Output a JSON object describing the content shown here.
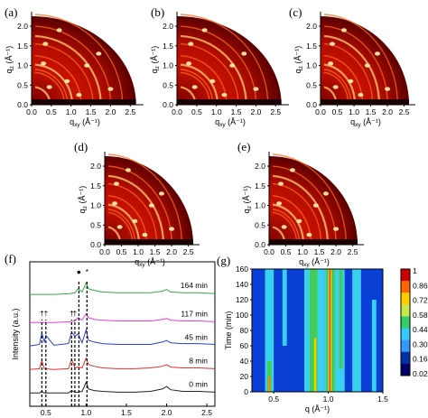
{
  "panels": {
    "gixd": [
      {
        "label": "(a)",
        "x_title": "q",
        "x_sub": "xy",
        "x_unit": " (Å⁻¹)",
        "y_title": "q",
        "y_sub": "z",
        "y_unit": " (Å⁻¹)"
      },
      {
        "label": "(b)",
        "x_title": "q",
        "x_sub": "xy",
        "x_unit": " (Å⁻¹)",
        "y_title": "q",
        "y_sub": "z",
        "y_unit": " (Å⁻¹)"
      },
      {
        "label": "(c)",
        "x_title": "q",
        "x_sub": "xy",
        "x_unit": " (Å⁻¹)",
        "y_title": "q",
        "y_sub": "z",
        "y_unit": " (Å⁻¹)"
      },
      {
        "label": "(d)",
        "x_title": "q",
        "x_sub": "xy",
        "x_unit": " (Å⁻¹)",
        "y_title": "q",
        "y_sub": "z",
        "y_unit": " (Å⁻¹)"
      },
      {
        "label": "(e)",
        "x_title": "q",
        "x_sub": "xy",
        "x_unit": " (Å⁻¹)",
        "y_title": "q",
        "y_sub": "z",
        "y_unit": " (Å⁻¹)"
      }
    ],
    "gixd_x_ticks": [
      "0.0",
      "0.5",
      "1.0",
      "1.5",
      "2.0",
      "2.5"
    ],
    "gixd_y_ticks": [
      "0.0",
      "0.5",
      "1.0",
      "1.5",
      "2.0"
    ],
    "f": {
      "label": "(f)"
    },
    "g": {
      "label": "(g)"
    }
  },
  "chart_data": [
    {
      "type": "heatmap",
      "panels": [
        "(a)",
        "(b)",
        "(c)",
        "(d)",
        "(e)"
      ],
      "xlabel": "qxy (Å-1)",
      "ylabel": "qz (Å-1)",
      "xlim": [
        0,
        2.7
      ],
      "ylim": [
        0,
        2.3
      ],
      "x_ticks": [
        0.0,
        0.5,
        1.0,
        1.5,
        2.0,
        2.5
      ],
      "y_ticks": [
        0.0,
        0.5,
        1.0,
        1.5,
        2.0
      ],
      "ring_q": [
        0.45,
        0.82,
        0.9,
        1.02,
        1.25,
        1.55,
        1.75,
        2.0,
        2.3
      ]
    },
    {
      "type": "line",
      "title": "(f)",
      "xlabel": "q (Å-1)",
      "ylabel": "Intensity (a.u.)",
      "xlim": [
        0.3,
        2.6
      ],
      "x_ticks": [
        0.5,
        1.0,
        1.5,
        2.0,
        2.5
      ],
      "series": [
        {
          "name": "0 min",
          "color": "#222222",
          "offset": 0,
          "x": [
            0.3,
            0.42,
            0.45,
            0.48,
            0.6,
            0.78,
            0.82,
            0.86,
            0.9,
            0.95,
            1.0,
            1.03,
            1.1,
            1.2,
            1.4,
            1.6,
            1.8,
            1.95,
            2.0,
            2.05,
            2.2,
            2.4,
            2.6
          ],
          "y": [
            0.3,
            0.3,
            0.5,
            0.3,
            0.3,
            0.3,
            0.6,
            0.4,
            0.4,
            0.5,
            1.6,
            0.8,
            0.6,
            0.5,
            0.4,
            0.4,
            0.5,
            0.8,
            1.1,
            0.7,
            0.5,
            0.5,
            0.4
          ]
        },
        {
          "name": "8 min",
          "color": "#e03030",
          "offset": 1,
          "x": [
            0.3,
            0.42,
            0.45,
            0.48,
            0.6,
            0.78,
            0.82,
            0.86,
            0.9,
            0.95,
            1.0,
            1.03,
            1.1,
            1.2,
            1.4,
            1.6,
            1.8,
            1.95,
            2.0,
            2.05,
            2.2,
            2.4,
            2.6
          ],
          "y": [
            0.3,
            0.4,
            1.4,
            0.4,
            0.3,
            0.4,
            1.6,
            0.5,
            0.6,
            0.5,
            1.7,
            0.9,
            0.7,
            0.5,
            0.4,
            0.4,
            0.5,
            0.7,
            0.9,
            0.6,
            0.5,
            0.5,
            0.4
          ]
        },
        {
          "name": "45 min",
          "color": "#2a3fcf",
          "offset": 2,
          "x": [
            0.3,
            0.42,
            0.45,
            0.48,
            0.5,
            0.6,
            0.78,
            0.82,
            0.86,
            0.9,
            0.95,
            1.0,
            1.03,
            1.1,
            1.2,
            1.4,
            1.6,
            1.8,
            1.95,
            2.0,
            2.05,
            2.2,
            2.4,
            2.6
          ],
          "y": [
            0.3,
            0.5,
            1.9,
            0.8,
            1.6,
            0.4,
            0.6,
            2.0,
            1.5,
            1.8,
            0.7,
            2.3,
            1.0,
            0.8,
            0.6,
            0.5,
            0.5,
            0.5,
            0.8,
            1.0,
            0.7,
            0.6,
            0.6,
            0.5
          ]
        },
        {
          "name": "117 min",
          "color": "#e040e0",
          "offset": 3,
          "x": [
            0.3,
            0.45,
            0.6,
            0.8,
            0.86,
            0.9,
            0.95,
            1.0,
            1.03,
            1.1,
            1.2,
            1.4,
            1.6,
            1.8,
            1.95,
            2.0,
            2.05,
            2.2,
            2.4,
            2.6
          ],
          "y": [
            0.3,
            0.3,
            0.3,
            0.4,
            0.5,
            0.9,
            0.6,
            1.4,
            0.9,
            0.7,
            0.6,
            0.5,
            0.5,
            0.5,
            0.7,
            0.8,
            0.6,
            0.5,
            0.5,
            0.4
          ]
        },
        {
          "name": "164 min",
          "color": "#33aa44",
          "offset": 4.2,
          "x": [
            0.3,
            0.45,
            0.6,
            0.8,
            0.86,
            0.9,
            0.95,
            1.0,
            1.03,
            1.1,
            1.2,
            1.4,
            1.6,
            1.8,
            1.95,
            2.0,
            2.05,
            2.2,
            2.4,
            2.6
          ],
          "y": [
            0.3,
            0.3,
            0.3,
            0.4,
            0.5,
            1.0,
            0.6,
            1.7,
            1.0,
            0.8,
            0.6,
            0.5,
            0.5,
            0.5,
            0.7,
            0.9,
            0.6,
            0.5,
            0.5,
            0.4
          ]
        }
      ],
      "markers": [
        {
          "symbol": "†",
          "q": 0.45
        },
        {
          "symbol": "†",
          "q": 0.5
        },
        {
          "symbol": "†",
          "q": 0.82
        },
        {
          "symbol": "†",
          "q": 0.86
        },
        {
          "symbol": "●",
          "q": 0.91
        },
        {
          "symbol": "*",
          "q": 1.01
        }
      ]
    },
    {
      "type": "heatmap",
      "title": "(g)",
      "xlabel": "q (Å-1)",
      "ylabel": "Time (min)",
      "xlim": [
        0.3,
        1.5
      ],
      "ylim": [
        0,
        160
      ],
      "x_ticks": [
        "0.5",
        "1.0",
        "1.5"
      ],
      "y_ticks": [
        "0",
        "20",
        "40",
        "60",
        "80",
        "100",
        "120",
        "140",
        "160"
      ],
      "colorbar": {
        "levels": [
          "1",
          "0.86",
          "0.72",
          "0.58",
          "0.44",
          "0.30",
          "0.16",
          "0.02"
        ],
        "colors": [
          "#cc0000",
          "#ff6600",
          "#ffcc00",
          "#c8e84a",
          "#33cc66",
          "#33ccff",
          "#3399ff",
          "#0033aa",
          "#000066"
        ]
      }
    }
  ]
}
